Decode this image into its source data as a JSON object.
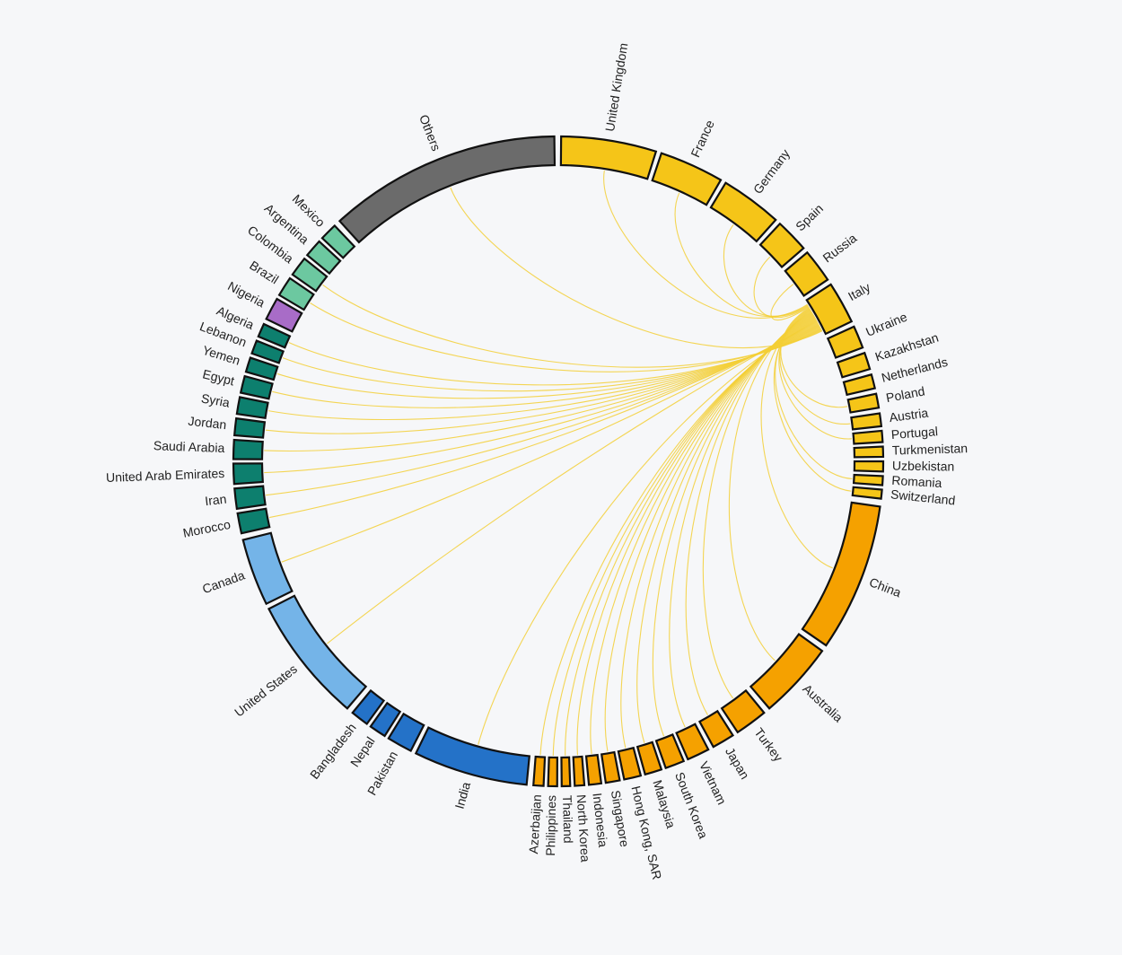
{
  "colors": {
    "europe": "#f5c518",
    "asia": "#f5a100",
    "south_asia": "#2472c8",
    "north_america": "#74b4e8",
    "middle_east_africa": "#0d7f6e",
    "nigeria": "#a86cc7",
    "latin_america": "#6cc8a0",
    "others": "#6b6b6b",
    "links": "#f3cf36"
  },
  "source_segment": "Italy",
  "segments": [
    {
      "name": "United Kingdom",
      "start": 0.5,
      "end": 17.5,
      "group": "europe"
    },
    {
      "name": "France",
      "start": 18.5,
      "end": 30.0,
      "group": "europe"
    },
    {
      "name": "Germany",
      "start": 31.0,
      "end": 42.0,
      "group": "europe"
    },
    {
      "name": "Spain",
      "start": 43.0,
      "end": 49.0,
      "group": "europe"
    },
    {
      "name": "Russia",
      "start": 50.0,
      "end": 56.0,
      "group": "europe"
    },
    {
      "name": "Italy",
      "start": 57.0,
      "end": 64.5,
      "group": "europe"
    },
    {
      "name": "Ukraine",
      "start": 65.5,
      "end": 69.5,
      "group": "europe"
    },
    {
      "name": "Kazakhstan",
      "start": 70.5,
      "end": 73.5,
      "group": "europe"
    },
    {
      "name": "Netherlands",
      "start": 74.5,
      "end": 77.0,
      "group": "europe"
    },
    {
      "name": "Poland",
      "start": 78.0,
      "end": 80.5,
      "group": "europe"
    },
    {
      "name": "Austria",
      "start": 81.5,
      "end": 83.8,
      "group": "europe"
    },
    {
      "name": "Portugal",
      "start": 84.6,
      "end": 86.6,
      "group": "europe"
    },
    {
      "name": "Turkmenistan",
      "start": 87.4,
      "end": 89.2,
      "group": "europe"
    },
    {
      "name": "Uzbekistan",
      "start": 90.0,
      "end": 91.8,
      "group": "europe"
    },
    {
      "name": "Romania",
      "start": 92.6,
      "end": 94.2,
      "group": "europe"
    },
    {
      "name": "Switzerland",
      "start": 95.0,
      "end": 96.6,
      "group": "europe"
    },
    {
      "name": "China",
      "start": 98.0,
      "end": 124.5,
      "group": "asia"
    },
    {
      "name": "Australia",
      "start": 125.7,
      "end": 139.5,
      "group": "asia"
    },
    {
      "name": "Turkey",
      "start": 140.7,
      "end": 146.5,
      "group": "asia"
    },
    {
      "name": "Japan",
      "start": 147.5,
      "end": 151.5,
      "group": "asia"
    },
    {
      "name": "Vietnam",
      "start": 152.5,
      "end": 156.5,
      "group": "asia"
    },
    {
      "name": "South Korea",
      "start": 157.3,
      "end": 160.7,
      "group": "asia"
    },
    {
      "name": "Malaysia",
      "start": 161.5,
      "end": 164.5,
      "group": "asia"
    },
    {
      "name": "Hong Kong, SAR",
      "start": 165.3,
      "end": 168.3,
      "group": "asia"
    },
    {
      "name": "Singapore",
      "start": 169.1,
      "end": 171.6,
      "group": "asia"
    },
    {
      "name": "Indonesia",
      "start": 172.4,
      "end": 174.6,
      "group": "asia"
    },
    {
      "name": "North Korea",
      "start": 175.4,
      "end": 177.1,
      "group": "asia"
    },
    {
      "name": "Thailand",
      "start": 177.9,
      "end": 179.4,
      "group": "asia"
    },
    {
      "name": "Philippines",
      "start": 180.2,
      "end": 181.8,
      "group": "asia"
    },
    {
      "name": "Azerbaijan",
      "start": 182.6,
      "end": 184.4,
      "group": "asia"
    },
    {
      "name": "India",
      "start": 185.6,
      "end": 206.0,
      "group": "south_asia"
    },
    {
      "name": "Pakistan",
      "start": 207.0,
      "end": 211.5,
      "group": "south_asia"
    },
    {
      "name": "Nepal",
      "start": 212.3,
      "end": 215.3,
      "group": "south_asia"
    },
    {
      "name": "Bangladesh",
      "start": 216.1,
      "end": 219.3,
      "group": "south_asia"
    },
    {
      "name": "United States",
      "start": 220.5,
      "end": 243.0,
      "group": "north_america"
    },
    {
      "name": "Canada",
      "start": 244.0,
      "end": 256.0,
      "group": "north_america"
    },
    {
      "name": "Morocco",
      "start": 257.2,
      "end": 260.8,
      "group": "middle_east_africa"
    },
    {
      "name": "Iran",
      "start": 261.6,
      "end": 265.2,
      "group": "middle_east_africa"
    },
    {
      "name": "United Arab Emirates",
      "start": 266.0,
      "end": 269.6,
      "group": "middle_east_africa"
    },
    {
      "name": "Saudi Arabia",
      "start": 270.4,
      "end": 273.8,
      "group": "middle_east_africa"
    },
    {
      "name": "Jordan",
      "start": 274.6,
      "end": 277.6,
      "group": "middle_east_africa"
    },
    {
      "name": "Syria",
      "start": 278.4,
      "end": 281.4,
      "group": "middle_east_africa"
    },
    {
      "name": "Egypt",
      "start": 282.2,
      "end": 285.2,
      "group": "middle_east_africa"
    },
    {
      "name": "Yemen",
      "start": 286.0,
      "end": 288.6,
      "group": "middle_east_africa"
    },
    {
      "name": "Lebanon",
      "start": 289.4,
      "end": 291.8,
      "group": "middle_east_africa"
    },
    {
      "name": "Algeria",
      "start": 292.6,
      "end": 295.0,
      "group": "middle_east_africa"
    },
    {
      "name": "Nigeria",
      "start": 296.0,
      "end": 300.0,
      "group": "nigeria"
    },
    {
      "name": "Brazil",
      "start": 300.8,
      "end": 304.3,
      "group": "latin_america"
    },
    {
      "name": "Colombia",
      "start": 305.1,
      "end": 308.6,
      "group": "latin_america"
    },
    {
      "name": "Argentina",
      "start": 309.4,
      "end": 312.6,
      "group": "latin_america"
    },
    {
      "name": "Mexico",
      "start": 313.4,
      "end": 316.5,
      "group": "latin_america"
    },
    {
      "name": "Others",
      "start": 317.7,
      "end": 359.3,
      "group": "others"
    }
  ],
  "links_from_italy": [
    "United Kingdom",
    "France",
    "Germany",
    "Spain",
    "Russia",
    "Poland",
    "Austria",
    "Portugal",
    "Romania",
    "Switzerland",
    "China",
    "Australia",
    "Turkey",
    "Japan",
    "Vietnam",
    "South Korea",
    "Malaysia",
    "Hong Kong, SAR",
    "Singapore",
    "Indonesia",
    "North Korea",
    "Thailand",
    "Philippines",
    "Azerbaijan",
    "India",
    "United States",
    "Canada",
    "Morocco",
    "Iran",
    "United Arab Emirates",
    "Saudi Arabia",
    "Jordan",
    "Syria",
    "Egypt",
    "Yemen",
    "Lebanon",
    "Algeria",
    "Brazil",
    "Colombia",
    "Others"
  ]
}
